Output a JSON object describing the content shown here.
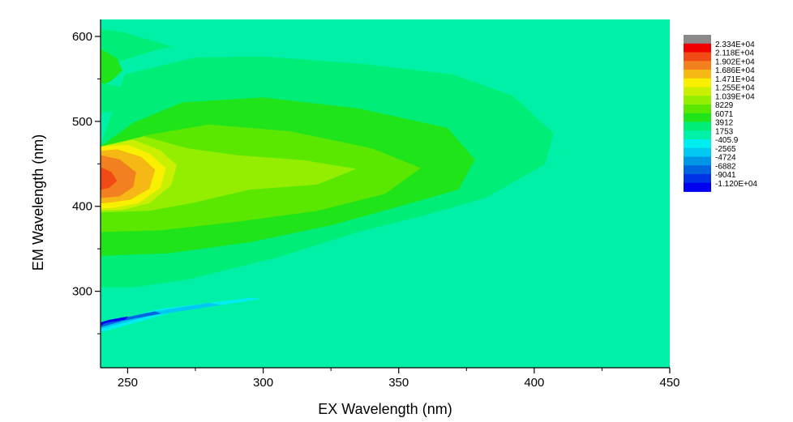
{
  "chart_data": {
    "type": "heatmap",
    "subtype": "filled-contour",
    "xlabel": "EX Wavelength (nm)",
    "ylabel": "EM Wavelength (nm)",
    "xlim": [
      240,
      450
    ],
    "ylim": [
      210,
      620
    ],
    "x_ticks": [
      250,
      300,
      350,
      400,
      450
    ],
    "x_tick_labels": [
      "250",
      "300",
      "350",
      "400",
      "450"
    ],
    "y_ticks": [
      300,
      400,
      500,
      600
    ],
    "y_tick_labels": [
      "300",
      "400",
      "500",
      "600"
    ],
    "grid": false,
    "legend_position": "right",
    "colorbar": {
      "levels": [
        {
          "label": "",
          "color": "#8a8a8a"
        },
        {
          "label": "2.334E+04",
          "color": "#f00000"
        },
        {
          "label": "2.118E+04",
          "color": "#f24a14"
        },
        {
          "label": "1.902E+04",
          "color": "#f2801e"
        },
        {
          "label": "1.686E+04",
          "color": "#f5b814"
        },
        {
          "label": "1.471E+04",
          "color": "#f8f000"
        },
        {
          "label": "1.255E+04",
          "color": "#c8f000"
        },
        {
          "label": "1.039E+04",
          "color": "#94ee00"
        },
        {
          "label": "8229",
          "color": "#5ae800"
        },
        {
          "label": "6071",
          "color": "#20e41a"
        },
        {
          "label": "3912",
          "color": "#00ee78"
        },
        {
          "label": "1753",
          "color": "#00f2a8"
        },
        {
          "label": "-405.9",
          "color": "#00eef0"
        },
        {
          "label": "-2565",
          "color": "#00c8f0"
        },
        {
          "label": "-4724",
          "color": "#0096e8"
        },
        {
          "label": "-6882",
          "color": "#0064e0"
        },
        {
          "label": "-9041",
          "color": "#0032e8"
        },
        {
          "label": "-1.120E+04",
          "color": "#0000f0"
        }
      ]
    },
    "background_color": "#00f0a8",
    "regions": [
      {
        "name": "band-3912",
        "color": "#00ee78",
        "points": [
          [
            249,
            555
          ],
          [
            275,
            575
          ],
          [
            300,
            576
          ],
          [
            335,
            568
          ],
          [
            370,
            555
          ],
          [
            392,
            530
          ],
          [
            407,
            486
          ],
          [
            404,
            450
          ],
          [
            382,
            410
          ],
          [
            360,
            390
          ],
          [
            335,
            370
          ],
          [
            305,
            340
          ],
          [
            272,
            314
          ],
          [
            252,
            305
          ],
          [
            240,
            305
          ],
          [
            240,
            470
          ]
        ]
      },
      {
        "name": "band-6071",
        "color": "#20e41a",
        "points": [
          [
            252,
            498
          ],
          [
            270,
            522
          ],
          [
            300,
            528
          ],
          [
            335,
            515
          ],
          [
            368,
            492
          ],
          [
            378,
            455
          ],
          [
            372,
            420
          ],
          [
            350,
            400
          ],
          [
            325,
            378
          ],
          [
            295,
            358
          ],
          [
            265,
            345
          ],
          [
            240,
            342
          ],
          [
            240,
            470
          ]
        ]
      },
      {
        "name": "band-8229",
        "color": "#5ae800",
        "points": [
          [
            258,
            484
          ],
          [
            280,
            496
          ],
          [
            310,
            488
          ],
          [
            340,
            468
          ],
          [
            358,
            445
          ],
          [
            345,
            415
          ],
          [
            320,
            395
          ],
          [
            290,
            382
          ],
          [
            262,
            372
          ],
          [
            240,
            370
          ],
          [
            240,
            470
          ]
        ]
      },
      {
        "name": "band-10390",
        "color": "#94ee00",
        "points": [
          [
            256,
            482
          ],
          [
            272,
            468
          ],
          [
            290,
            460
          ],
          [
            315,
            454
          ],
          [
            334,
            444
          ],
          [
            320,
            426
          ],
          [
            295,
            420
          ],
          [
            275,
            405
          ],
          [
            258,
            395
          ],
          [
            240,
            393
          ],
          [
            240,
            470
          ]
        ]
      },
      {
        "name": "band-12550",
        "color": "#c8f000",
        "points": [
          [
            252,
            478
          ],
          [
            262,
            466
          ],
          [
            268,
            448
          ],
          [
            266,
            425
          ],
          [
            258,
            404
          ],
          [
            248,
            396
          ],
          [
            240,
            395
          ],
          [
            240,
            470
          ]
        ]
      },
      {
        "name": "band-14710",
        "color": "#f8f000",
        "points": [
          [
            250,
            472
          ],
          [
            258,
            462
          ],
          [
            264,
            445
          ],
          [
            262,
            422
          ],
          [
            254,
            404
          ],
          [
            244,
            398
          ],
          [
            240,
            398
          ],
          [
            240,
            470
          ]
        ]
      },
      {
        "name": "band-16860",
        "color": "#f5b814",
        "points": [
          [
            246,
            467
          ],
          [
            255,
            458
          ],
          [
            260,
            443
          ],
          [
            258,
            421
          ],
          [
            251,
            408
          ],
          [
            242,
            404
          ],
          [
            240,
            404
          ],
          [
            240,
            465
          ]
        ]
      },
      {
        "name": "band-19020",
        "color": "#f2801e",
        "points": [
          [
            240,
            460
          ],
          [
            247,
            455
          ],
          [
            253,
            440
          ],
          [
            252,
            423
          ],
          [
            247,
            412
          ],
          [
            240,
            410
          ]
        ]
      },
      {
        "name": "band-21180",
        "color": "#f24a14",
        "points": [
          [
            240,
            446
          ],
          [
            244,
            440
          ],
          [
            246,
            430
          ],
          [
            243,
            422
          ],
          [
            240,
            420
          ]
        ]
      },
      {
        "name": "upper-green-lobe",
        "color": "#00ee78",
        "points": [
          [
            240,
            608
          ],
          [
            248,
            605
          ],
          [
            266,
            588
          ],
          [
            260,
            584
          ],
          [
            248,
            572
          ],
          [
            240,
            565
          ]
        ]
      },
      {
        "name": "mid-green-lobe",
        "color": "#20e41a",
        "points": [
          [
            240,
            585
          ],
          [
            246,
            574
          ],
          [
            248,
            560
          ],
          [
            244,
            548
          ],
          [
            240,
            542
          ]
        ]
      },
      {
        "name": "left-green-lobe",
        "color": "#00ee78",
        "points": [
          [
            240,
            545
          ],
          [
            248,
            540
          ],
          [
            253,
            528
          ],
          [
            247,
            514
          ],
          [
            240,
            510
          ]
        ]
      },
      {
        "name": "rayleigh-streak-1",
        "color": "#00eef0",
        "points": [
          [
            240,
            261
          ],
          [
            262,
            279
          ],
          [
            295,
            292
          ],
          [
            299,
            291
          ],
          [
            266,
            275
          ],
          [
            240,
            252
          ]
        ]
      },
      {
        "name": "rayleigh-streak-2",
        "color": "#00c8f0",
        "points": [
          [
            240,
            262
          ],
          [
            256,
            274
          ],
          [
            280,
            286
          ],
          [
            284,
            284
          ],
          [
            258,
            271
          ],
          [
            240,
            256
          ]
        ]
      },
      {
        "name": "rayleigh-streak-3",
        "color": "#0064e0",
        "points": [
          [
            240,
            262
          ],
          [
            248,
            268
          ],
          [
            260,
            276
          ],
          [
            262,
            274
          ],
          [
            249,
            266
          ],
          [
            240,
            258
          ]
        ]
      },
      {
        "name": "rayleigh-streak-4",
        "color": "#0000f0",
        "points": [
          [
            240,
            263
          ],
          [
            243,
            266
          ],
          [
            250,
            270
          ],
          [
            249,
            267
          ],
          [
            242,
            263
          ],
          [
            240,
            260
          ]
        ]
      }
    ]
  }
}
